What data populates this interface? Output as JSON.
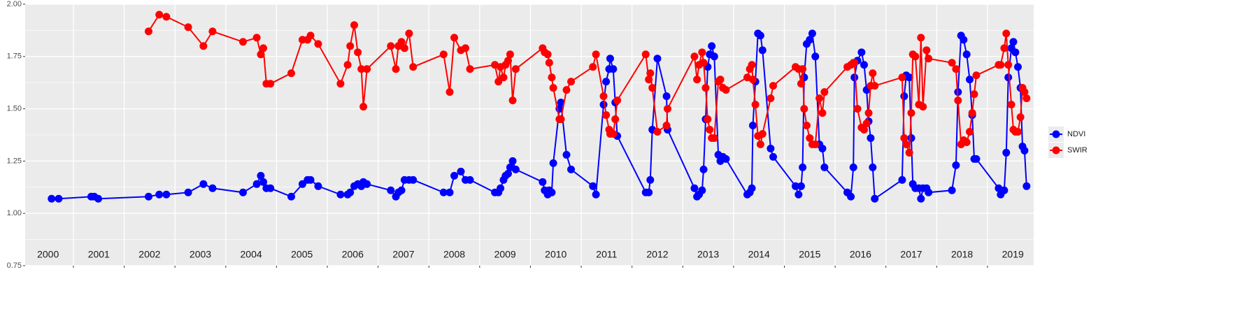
{
  "chart_data": {
    "type": "line",
    "x": [
      2000.57,
      2000.71,
      2001.35,
      2001.41,
      2001.49,
      2002.48,
      2002.69,
      2002.83,
      2003.26,
      2003.56,
      2003.74,
      2004.34,
      2004.61,
      2004.69,
      2004.74,
      2004.8,
      2004.88,
      2005.29,
      2005.51,
      2005.61,
      2005.67,
      2005.82,
      2006.26,
      2006.4,
      2006.45,
      2006.53,
      2006.6,
      2006.67,
      2006.71,
      2006.78,
      2007.25,
      2007.35,
      2007.4,
      2007.46,
      2007.52,
      2007.61,
      2007.69,
      2008.29,
      2008.41,
      2008.5,
      2008.63,
      2008.72,
      2008.81,
      2009.3,
      2009.37,
      2009.41,
      2009.47,
      2009.51,
      2009.56,
      2009.6,
      2009.65,
      2009.71,
      2010.24,
      2010.28,
      2010.34,
      2010.37,
      2010.42,
      2010.45,
      2010.57,
      2010.6,
      2010.71,
      2010.8,
      2011.23,
      2011.29,
      2011.44,
      2011.49,
      2011.55,
      2011.57,
      2011.63,
      2011.67,
      2011.71,
      2012.27,
      2012.33,
      2012.36,
      2012.4,
      2012.5,
      2012.68,
      2012.7,
      2013.23,
      2013.28,
      2013.32,
      2013.38,
      2013.41,
      2013.45,
      2013.49,
      2013.53,
      2013.57,
      2013.62,
      2013.7,
      2013.74,
      2013.79,
      2013.85,
      2014.27,
      2014.32,
      2014.36,
      2014.38,
      2014.43,
      2014.48,
      2014.53,
      2014.57,
      2014.73,
      2014.78,
      2015.22,
      2015.28,
      2015.33,
      2015.36,
      2015.39,
      2015.44,
      2015.5,
      2015.55,
      2015.61,
      2015.69,
      2015.75,
      2015.79,
      2016.24,
      2016.31,
      2016.36,
      2016.38,
      2016.44,
      2016.52,
      2016.57,
      2016.62,
      2016.66,
      2016.7,
      2016.74,
      2016.78,
      2017.32,
      2017.36,
      2017.4,
      2017.46,
      2017.5,
      2017.53,
      2017.58,
      2017.65,
      2017.69,
      2017.73,
      2017.8,
      2017.84,
      2018.3,
      2018.38,
      2018.42,
      2018.48,
      2018.53,
      2018.59,
      2018.65,
      2018.7,
      2018.74,
      2018.78,
      2019.22,
      2019.26,
      2019.33,
      2019.37,
      2019.41,
      2019.47,
      2019.51,
      2019.55,
      2019.6,
      2019.65,
      2019.69,
      2019.73,
      2019.77
    ],
    "series": [
      {
        "name": "NDVI",
        "color": "#0000ff",
        "values": [
          1.07,
          1.07,
          1.08,
          1.08,
          1.07,
          1.08,
          1.09,
          1.09,
          1.1,
          1.14,
          1.12,
          1.1,
          1.14,
          1.18,
          1.15,
          1.12,
          1.12,
          1.08,
          1.14,
          1.16,
          1.16,
          1.13,
          1.09,
          1.09,
          1.1,
          1.13,
          1.14,
          1.13,
          1.15,
          1.14,
          1.11,
          1.08,
          1.1,
          1.11,
          1.16,
          1.16,
          1.16,
          1.1,
          1.1,
          1.18,
          1.2,
          1.16,
          1.16,
          1.1,
          1.1,
          1.12,
          1.16,
          1.18,
          1.19,
          1.22,
          1.25,
          1.21,
          1.15,
          1.11,
          1.09,
          1.11,
          1.1,
          1.24,
          1.5,
          1.53,
          1.28,
          1.21,
          1.13,
          1.09,
          1.52,
          1.63,
          1.69,
          1.74,
          1.69,
          1.53,
          1.37,
          1.1,
          1.1,
          1.16,
          1.4,
          1.74,
          1.56,
          1.4,
          1.12,
          1.08,
          1.09,
          1.11,
          1.21,
          1.45,
          1.7,
          1.76,
          1.8,
          1.75,
          1.28,
          1.25,
          1.27,
          1.26,
          1.09,
          1.1,
          1.12,
          1.42,
          1.63,
          1.86,
          1.85,
          1.78,
          1.31,
          1.27,
          1.13,
          1.09,
          1.13,
          1.22,
          1.65,
          1.81,
          1.83,
          1.86,
          1.75,
          1.33,
          1.31,
          1.22,
          1.1,
          1.08,
          1.22,
          1.65,
          1.73,
          1.77,
          1.71,
          1.59,
          1.44,
          1.36,
          1.22,
          1.07,
          1.16,
          1.56,
          1.66,
          1.65,
          1.36,
          1.14,
          1.12,
          1.12,
          1.07,
          1.12,
          1.12,
          1.1,
          1.11,
          1.23,
          1.58,
          1.85,
          1.83,
          1.76,
          1.64,
          1.47,
          1.26,
          1.26,
          1.12,
          1.09,
          1.11,
          1.29,
          1.65,
          1.79,
          1.82,
          1.77,
          1.7,
          1.6,
          1.32,
          1.3,
          1.13
        ]
      },
      {
        "name": "SWIR",
        "color": "#ff0000",
        "values": [
          null,
          null,
          null,
          null,
          null,
          1.87,
          1.95,
          1.94,
          1.89,
          1.8,
          1.87,
          1.82,
          1.84,
          1.76,
          1.79,
          1.62,
          1.62,
          1.67,
          1.83,
          1.83,
          1.85,
          1.81,
          1.62,
          1.71,
          1.8,
          1.9,
          1.77,
          1.69,
          1.51,
          1.69,
          1.8,
          1.69,
          1.8,
          1.82,
          1.79,
          1.86,
          1.7,
          1.76,
          1.58,
          1.84,
          1.78,
          1.79,
          1.69,
          1.71,
          1.63,
          1.7,
          1.65,
          1.71,
          1.73,
          1.76,
          1.54,
          1.69,
          1.79,
          1.77,
          1.76,
          1.72,
          1.65,
          1.6,
          1.45,
          1.45,
          1.59,
          1.63,
          1.7,
          1.76,
          1.56,
          1.47,
          1.4,
          1.38,
          1.38,
          1.45,
          1.54,
          1.76,
          1.64,
          1.67,
          1.6,
          1.39,
          1.42,
          1.5,
          1.75,
          1.64,
          1.71,
          1.77,
          1.72,
          1.6,
          1.45,
          1.4,
          1.36,
          1.36,
          1.63,
          1.64,
          1.6,
          1.59,
          1.65,
          1.69,
          1.71,
          1.64,
          1.52,
          1.37,
          1.33,
          1.38,
          1.55,
          1.61,
          1.7,
          1.69,
          1.62,
          1.69,
          1.5,
          1.42,
          1.36,
          1.33,
          1.33,
          1.55,
          1.48,
          1.58,
          1.7,
          1.71,
          1.72,
          1.72,
          1.5,
          1.41,
          1.4,
          1.43,
          1.48,
          1.61,
          1.67,
          1.61,
          1.65,
          1.36,
          1.33,
          1.29,
          1.48,
          1.76,
          1.75,
          1.52,
          1.84,
          1.51,
          1.78,
          1.74,
          1.72,
          1.69,
          1.54,
          1.33,
          1.35,
          1.34,
          1.39,
          1.48,
          1.57,
          1.66,
          1.71,
          1.71,
          1.79,
          1.86,
          1.71,
          1.52,
          1.4,
          1.39,
          1.39,
          1.46,
          1.6,
          1.58,
          1.55
        ]
      }
    ],
    "xlim": [
      2000.05,
      2019.91
    ],
    "xticks": [
      2001,
      2002,
      2003,
      2004,
      2005,
      2006,
      2007,
      2008,
      2009,
      2010,
      2011,
      2012,
      2013,
      2014,
      2015,
      2016,
      2017,
      2018,
      2019
    ],
    "ylim": [
      0.75,
      2.0
    ],
    "yticks": [
      {
        "value": 0.75,
        "label": "0.75"
      },
      {
        "value": 1,
        "label": "1.00"
      },
      {
        "value": 1.25,
        "label": "1.25"
      },
      {
        "value": 1.5,
        "label": "1.50"
      },
      {
        "value": 1.75,
        "label": "1.75"
      },
      {
        "value": 2,
        "label": "2.00"
      }
    ],
    "minor_yticks": [
      0.875,
      1.125,
      1.375,
      1.625,
      1.875
    ],
    "grid": true,
    "legend": "right",
    "annotations": [
      {
        "text": "2000",
        "x": 2000.5,
        "y": 0.8
      },
      {
        "text": "2001",
        "x": 2001.5,
        "y": 0.8
      },
      {
        "text": "2002",
        "x": 2002.5,
        "y": 0.8
      },
      {
        "text": "2003",
        "x": 2003.5,
        "y": 0.8
      },
      {
        "text": "2004",
        "x": 2004.5,
        "y": 0.8
      },
      {
        "text": "2005",
        "x": 2005.5,
        "y": 0.8
      },
      {
        "text": "2006",
        "x": 2006.5,
        "y": 0.8
      },
      {
        "text": "2007",
        "x": 2007.5,
        "y": 0.8
      },
      {
        "text": "2008",
        "x": 2008.5,
        "y": 0.8
      },
      {
        "text": "2009",
        "x": 2009.5,
        "y": 0.8
      },
      {
        "text": "2010",
        "x": 2010.5,
        "y": 0.8
      },
      {
        "text": "2011",
        "x": 2011.5,
        "y": 0.8
      },
      {
        "text": "2012",
        "x": 2012.5,
        "y": 0.8
      },
      {
        "text": "2013",
        "x": 2013.5,
        "y": 0.8
      },
      {
        "text": "2014",
        "x": 2014.5,
        "y": 0.8
      },
      {
        "text": "2015",
        "x": 2015.5,
        "y": 0.8
      },
      {
        "text": "2016",
        "x": 2016.5,
        "y": 0.8
      },
      {
        "text": "2017",
        "x": 2017.5,
        "y": 0.8
      },
      {
        "text": "2018",
        "x": 2018.5,
        "y": 0.8
      },
      {
        "text": "2019",
        "x": 2019.5,
        "y": 0.8
      }
    ]
  }
}
